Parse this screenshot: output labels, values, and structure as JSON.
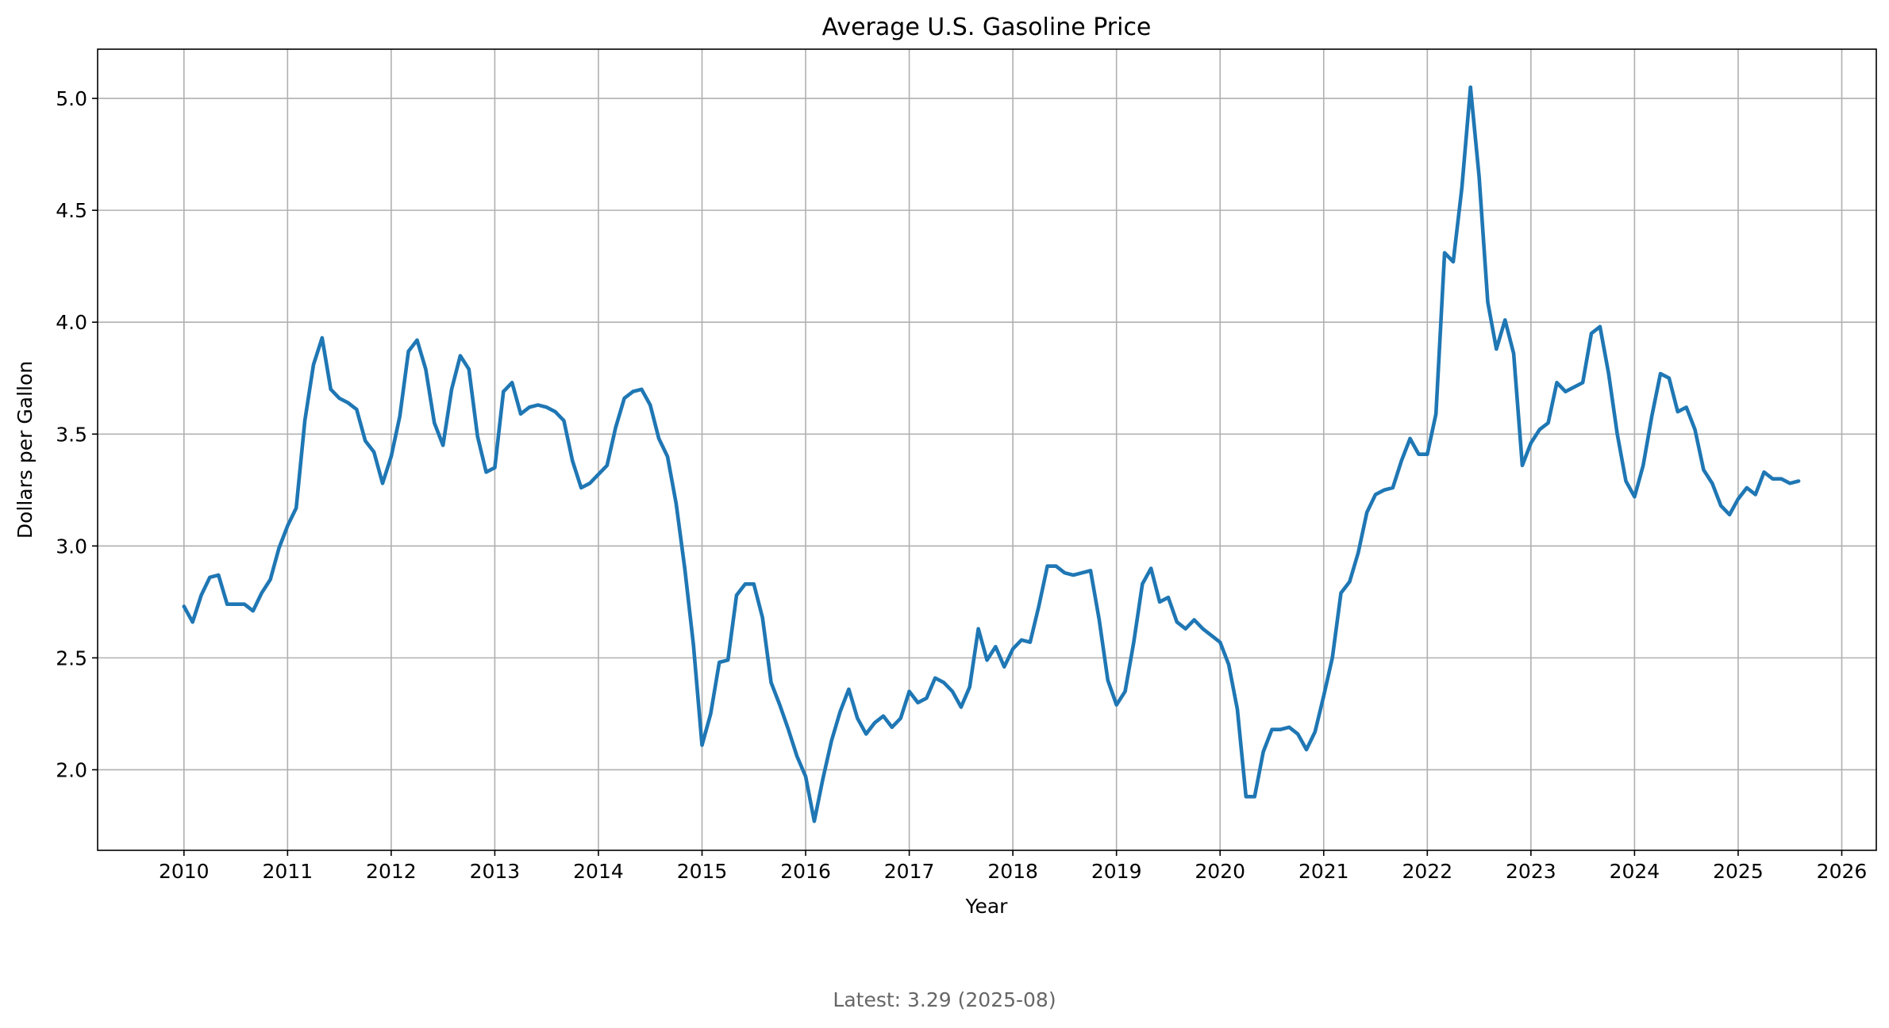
{
  "chart_data": {
    "type": "line",
    "title": "Average U.S. Gasoline Price",
    "xlabel": "Year",
    "ylabel": "Dollars per Gallon",
    "x_ticks": [
      "2010",
      "2011",
      "2012",
      "2013",
      "2014",
      "2015",
      "2016",
      "2017",
      "2018",
      "2019",
      "2020",
      "2021",
      "2022",
      "2023",
      "2024",
      "2025",
      "2026"
    ],
    "y_ticks": [
      "2.0",
      "2.5",
      "3.0",
      "3.5",
      "4.0",
      "4.5",
      "5.0"
    ],
    "xlim": [
      "2009-03",
      "2026-05"
    ],
    "ylim": [
      1.64,
      5.22
    ],
    "grid": true,
    "color": "#1f77b4",
    "series": [
      {
        "x": [
          "2010-01",
          "2010-02",
          "2010-03",
          "2010-04",
          "2010-05",
          "2010-06",
          "2010-07",
          "2010-08",
          "2010-09",
          "2010-10",
          "2010-11",
          "2010-12",
          "2011-01",
          "2011-02",
          "2011-03",
          "2011-04",
          "2011-05",
          "2011-06",
          "2011-07",
          "2011-08",
          "2011-09",
          "2011-10",
          "2011-11",
          "2011-12",
          "2012-01",
          "2012-02",
          "2012-03",
          "2012-04",
          "2012-05",
          "2012-06",
          "2012-07",
          "2012-08",
          "2012-09",
          "2012-10",
          "2012-11",
          "2012-12",
          "2013-01",
          "2013-02",
          "2013-03",
          "2013-04",
          "2013-05",
          "2013-06",
          "2013-07",
          "2013-08",
          "2013-09",
          "2013-10",
          "2013-11",
          "2013-12",
          "2014-01",
          "2014-02",
          "2014-03",
          "2014-04",
          "2014-05",
          "2014-06",
          "2014-07",
          "2014-08",
          "2014-09",
          "2014-10",
          "2014-11",
          "2014-12",
          "2015-01",
          "2015-02",
          "2015-03",
          "2015-04",
          "2015-05",
          "2015-06",
          "2015-07",
          "2015-08",
          "2015-09",
          "2015-10",
          "2015-11",
          "2015-12",
          "2016-01",
          "2016-02",
          "2016-03",
          "2016-04",
          "2016-05",
          "2016-06",
          "2016-07",
          "2016-08",
          "2016-09",
          "2016-10",
          "2016-11",
          "2016-12",
          "2017-01",
          "2017-02",
          "2017-03",
          "2017-04",
          "2017-05",
          "2017-06",
          "2017-07",
          "2017-08",
          "2017-09",
          "2017-10",
          "2017-11",
          "2017-12",
          "2018-01",
          "2018-02",
          "2018-03",
          "2018-04",
          "2018-05",
          "2018-06",
          "2018-07",
          "2018-08",
          "2018-09",
          "2018-10",
          "2018-11",
          "2018-12",
          "2019-01",
          "2019-02",
          "2019-03",
          "2019-04",
          "2019-05",
          "2019-06",
          "2019-07",
          "2019-08",
          "2019-09",
          "2019-10",
          "2019-11",
          "2019-12",
          "2020-01",
          "2020-02",
          "2020-03",
          "2020-04",
          "2020-05",
          "2020-06",
          "2020-07",
          "2020-08",
          "2020-09",
          "2020-10",
          "2020-11",
          "2020-12",
          "2021-01",
          "2021-02",
          "2021-03",
          "2021-04",
          "2021-05",
          "2021-06",
          "2021-07",
          "2021-08",
          "2021-09",
          "2021-10",
          "2021-11",
          "2021-12",
          "2022-01",
          "2022-02",
          "2022-03",
          "2022-04",
          "2022-05",
          "2022-06",
          "2022-07",
          "2022-08",
          "2022-09",
          "2022-10",
          "2022-11",
          "2022-12",
          "2023-01",
          "2023-02",
          "2023-03",
          "2023-04",
          "2023-05",
          "2023-06",
          "2023-07",
          "2023-08",
          "2023-09",
          "2023-10",
          "2023-11",
          "2023-12",
          "2024-01",
          "2024-02",
          "2024-03",
          "2024-04",
          "2024-05",
          "2024-06",
          "2024-07",
          "2024-08",
          "2024-09",
          "2024-10",
          "2024-11",
          "2024-12",
          "2025-01",
          "2025-02",
          "2025-03",
          "2025-04",
          "2025-05",
          "2025-06",
          "2025-07",
          "2025-08"
        ],
        "y": [
          2.73,
          2.66,
          2.78,
          2.86,
          2.87,
          2.74,
          2.74,
          2.74,
          2.71,
          2.79,
          2.85,
          2.99,
          3.09,
          3.17,
          3.56,
          3.81,
          3.93,
          3.7,
          3.66,
          3.64,
          3.61,
          3.47,
          3.42,
          3.28,
          3.4,
          3.58,
          3.87,
          3.92,
          3.79,
          3.55,
          3.45,
          3.7,
          3.85,
          3.79,
          3.49,
          3.33,
          3.35,
          3.69,
          3.73,
          3.59,
          3.62,
          3.63,
          3.62,
          3.6,
          3.56,
          3.38,
          3.26,
          3.28,
          3.32,
          3.36,
          3.53,
          3.66,
          3.69,
          3.7,
          3.63,
          3.48,
          3.4,
          3.19,
          2.9,
          2.56,
          2.11,
          2.25,
          2.48,
          2.49,
          2.78,
          2.83,
          2.83,
          2.68,
          2.39,
          2.29,
          2.18,
          2.06,
          1.97,
          1.77,
          1.96,
          2.13,
          2.26,
          2.36,
          2.23,
          2.16,
          2.21,
          2.24,
          2.19,
          2.23,
          2.35,
          2.3,
          2.32,
          2.41,
          2.39,
          2.35,
          2.28,
          2.37,
          2.63,
          2.49,
          2.55,
          2.46,
          2.54,
          2.58,
          2.57,
          2.73,
          2.91,
          2.91,
          2.88,
          2.87,
          2.88,
          2.89,
          2.67,
          2.4,
          2.29,
          2.35,
          2.57,
          2.83,
          2.9,
          2.75,
          2.77,
          2.66,
          2.63,
          2.67,
          2.63,
          2.6,
          2.57,
          2.47,
          2.27,
          1.88,
          1.88,
          2.08,
          2.18,
          2.18,
          2.19,
          2.16,
          2.09,
          2.17,
          2.33,
          2.5,
          2.79,
          2.84,
          2.97,
          3.15,
          3.23,
          3.25,
          3.26,
          3.38,
          3.48,
          3.41,
          3.41,
          3.59,
          4.31,
          4.27,
          4.6,
          5.05,
          4.65,
          4.09,
          3.88,
          4.01,
          3.86,
          3.36,
          3.46,
          3.52,
          3.55,
          3.73,
          3.69,
          3.71,
          3.73,
          3.95,
          3.98,
          3.77,
          3.5,
          3.29,
          3.22,
          3.36,
          3.58,
          3.77,
          3.75,
          3.6,
          3.62,
          3.52,
          3.34,
          3.28,
          3.18,
          3.14,
          3.21,
          3.26,
          3.23,
          3.33,
          3.3,
          3.3,
          3.28,
          3.29
        ]
      }
    ],
    "annotation": "Latest: 3.29  (2025-08)"
  }
}
